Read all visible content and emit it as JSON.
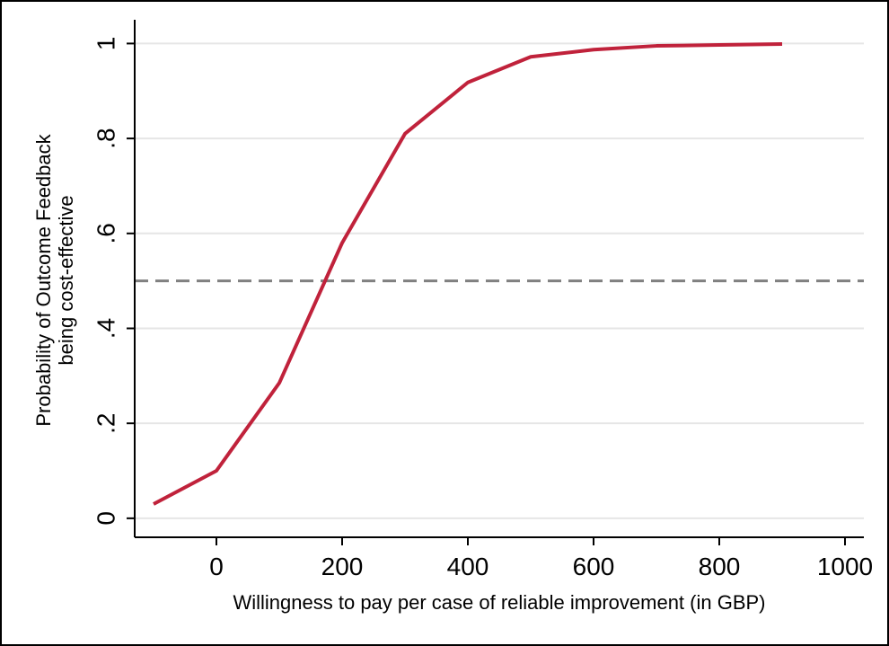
{
  "chart_data": {
    "type": "line",
    "title": "",
    "xlabel": "Willingness to pay per case of reliable improvement (in GBP)",
    "ylabel_lines": [
      "Probability of Outcome Feedback",
      "being cost-effective"
    ],
    "xlim": [
      -130,
      1030
    ],
    "ylim": [
      -0.04,
      1.05
    ],
    "x_ticks": [
      0,
      200,
      400,
      600,
      800,
      1000
    ],
    "x_tick_labels": [
      "0",
      "200",
      "400",
      "600",
      "800",
      "1000"
    ],
    "y_ticks": [
      0,
      0.2,
      0.4,
      0.6,
      0.8,
      1
    ],
    "y_tick_labels": [
      "0",
      ".2",
      ".4",
      ".6",
      ".8",
      "1"
    ],
    "grid": "horizontal",
    "series": [
      {
        "color": "#c0223b",
        "x": [
          -100,
          0,
          100,
          200,
          300,
          400,
          500,
          600,
          700,
          800,
          900
        ],
        "y": [
          0.03,
          0.1,
          0.285,
          0.58,
          0.81,
          0.918,
          0.972,
          0.987,
          0.995,
          0.997,
          0.999
        ]
      }
    ],
    "reference_lines": [
      {
        "y": 0.5,
        "style": "dashed",
        "color": "#808080"
      }
    ]
  }
}
